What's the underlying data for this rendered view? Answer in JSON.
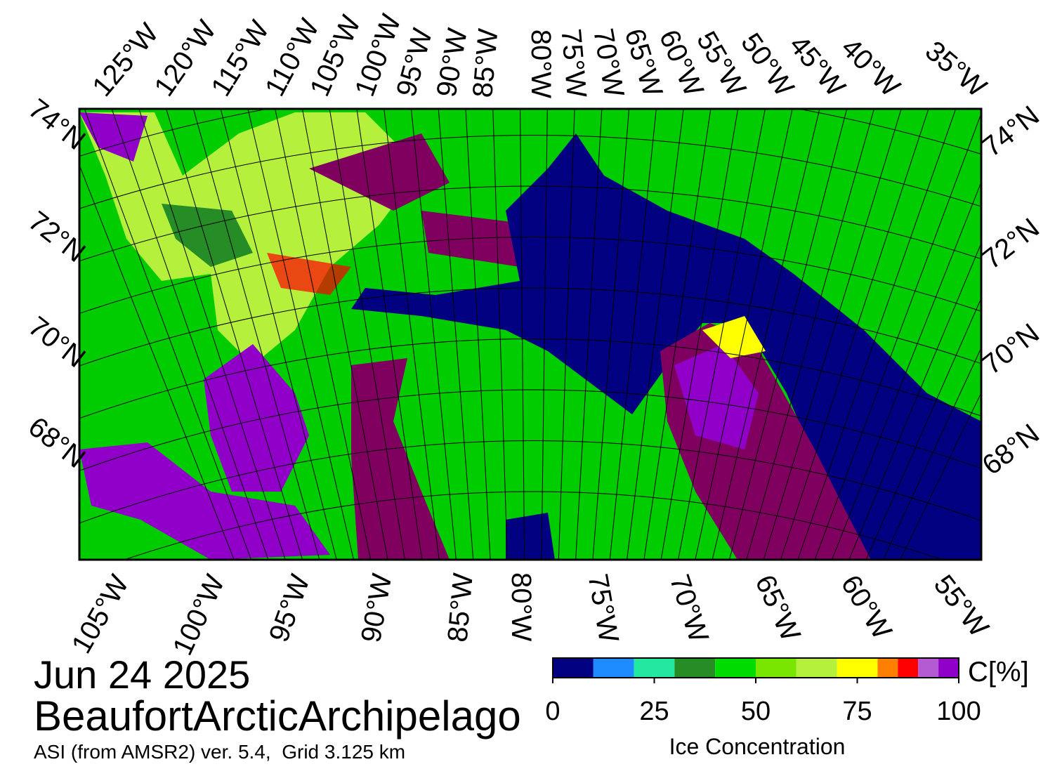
{
  "map": {
    "top_labels": [
      "125°W",
      "120°W",
      "115°W",
      "110°W",
      "105°W",
      "100°W",
      "95°W",
      "90°W",
      "85°W",
      "80°W",
      "75°W",
      "70°W",
      "65°W",
      "60°W",
      "55°W",
      "50°W",
      "45°W",
      "40°W",
      "35°W"
    ],
    "bottom_labels": [
      "105°W",
      "100°W",
      "95°W",
      "90°W",
      "85°W",
      "80°W",
      "75°W",
      "70°W",
      "65°W",
      "60°W",
      "55°W"
    ],
    "left_labels": [
      "74°N",
      "72°N",
      "70°N",
      "68°N"
    ],
    "right_labels": [
      "74°N",
      "72°N",
      "70°N",
      "68°N"
    ]
  },
  "date": "Jun 24 2025",
  "region": "BeaufortArcticArchipelago",
  "subtitle": "ASI (from AMSR2) ver. 5.4,  Grid 3.125 km",
  "colorbar": {
    "unit": "C[%]",
    "label": "Ice Concentration",
    "bounds": [
      0,
      10,
      20,
      30,
      40,
      50,
      60,
      70,
      80,
      85,
      90,
      95,
      100
    ],
    "colors": [
      "#000080",
      "#1e8cff",
      "#22e8a0",
      "#268c26",
      "#00dc00",
      "#78e600",
      "#b4f03c",
      "#ffff00",
      "#ff8000",
      "#ff0000",
      "#b45ad2",
      "#9000c8"
    ],
    "ticks": [
      0,
      25,
      50,
      75,
      100
    ]
  }
}
